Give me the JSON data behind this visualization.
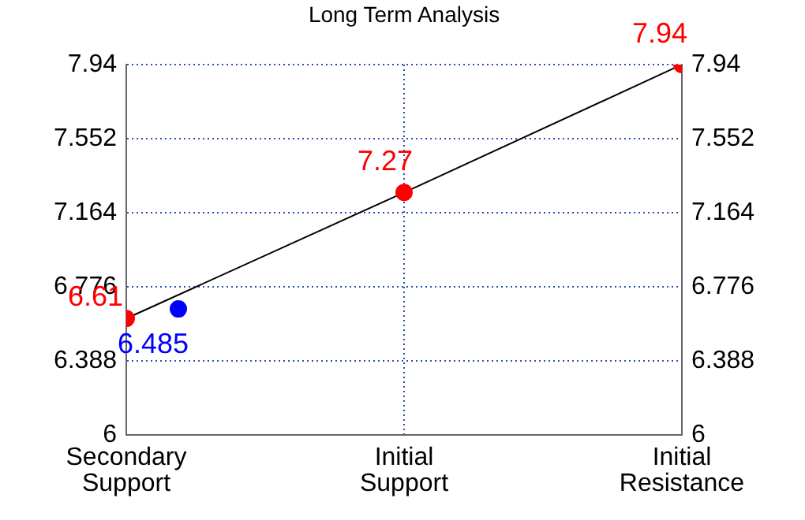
{
  "chart_data": {
    "type": "line",
    "title": "Long Term Analysis",
    "categories": [
      "Secondary Support",
      "Initial Support",
      "Initial Resistance"
    ],
    "series": [
      {
        "type": "line",
        "color": "#000000",
        "colors": [
          "#ff0000",
          "#ff0000",
          "#ff0000"
        ],
        "values": [
          6.61,
          7.27,
          7.94
        ],
        "value_labels": [
          "6.61",
          "7.27",
          "7.94"
        ],
        "marker": "circle"
      },
      {
        "type": "scatter",
        "color": "#0000ff",
        "values": [
          6.66,
          null,
          null
        ],
        "marker": "circle"
      }
    ],
    "annotations": [
      {
        "text": "6.485",
        "x": "Secondary Support",
        "y": 6.66
      }
    ],
    "ylim": [
      6,
      7.94
    ],
    "yticks": [
      6,
      6.388,
      6.776,
      7.164,
      7.552,
      7.94
    ],
    "y2lim": [
      6,
      7.94
    ],
    "y2ticks": [
      6,
      6.388,
      6.776,
      7.164,
      7.552,
      7.94
    ],
    "grid": true,
    "line_style": "solid"
  }
}
